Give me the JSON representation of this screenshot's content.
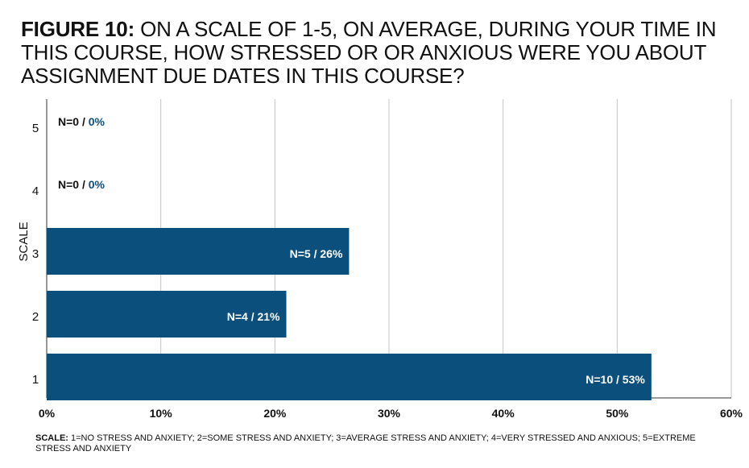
{
  "title": {
    "lead": "FIGURE 10:",
    "text": "ON A SCALE OF 1-5, ON AVERAGE, DURING YOUR TIME IN THIS COURSE, HOW STRESSED OR OR ANXIOUS WERE YOU ABOUT ASSIGNMENT DUE DATES IN THIS COURSE?"
  },
  "note": {
    "lead": "SCALE:",
    "text": "1=NO STRESS AND ANXIETY; 2=SOME STRESS AND ANXIETY; 3=AVERAGE STRESS AND ANXIETY; 4=VERY STRESSED AND ANXIOUS; 5=EXTREME STRESS AND ANXIETY"
  },
  "chart_data": {
    "type": "bar",
    "orientation": "horizontal",
    "categories": [
      "5",
      "4",
      "3",
      "2",
      "1"
    ],
    "values": [
      0,
      0,
      26.5,
      21,
      53
    ],
    "data_labels": [
      {
        "n": "N=0",
        "sep": " / ",
        "pct": "0%"
      },
      {
        "n": "N=0",
        "sep": " / ",
        "pct": "0%"
      },
      {
        "n": "N=5",
        "sep": " / ",
        "pct": "26%"
      },
      {
        "n": "N=4",
        "sep": " / ",
        "pct": "21%"
      },
      {
        "n": "N=10",
        "sep": " / ",
        "pct": "53%"
      }
    ],
    "x_ticks": [
      "0%",
      "10%",
      "20%",
      "30%",
      "40%",
      "50%",
      "60%"
    ],
    "xlim": [
      0,
      60
    ],
    "ylabel": "SCALE",
    "grid": true,
    "bar_color": "#0b4f7c",
    "zero_label_pct_color": "#0b4f7c"
  }
}
